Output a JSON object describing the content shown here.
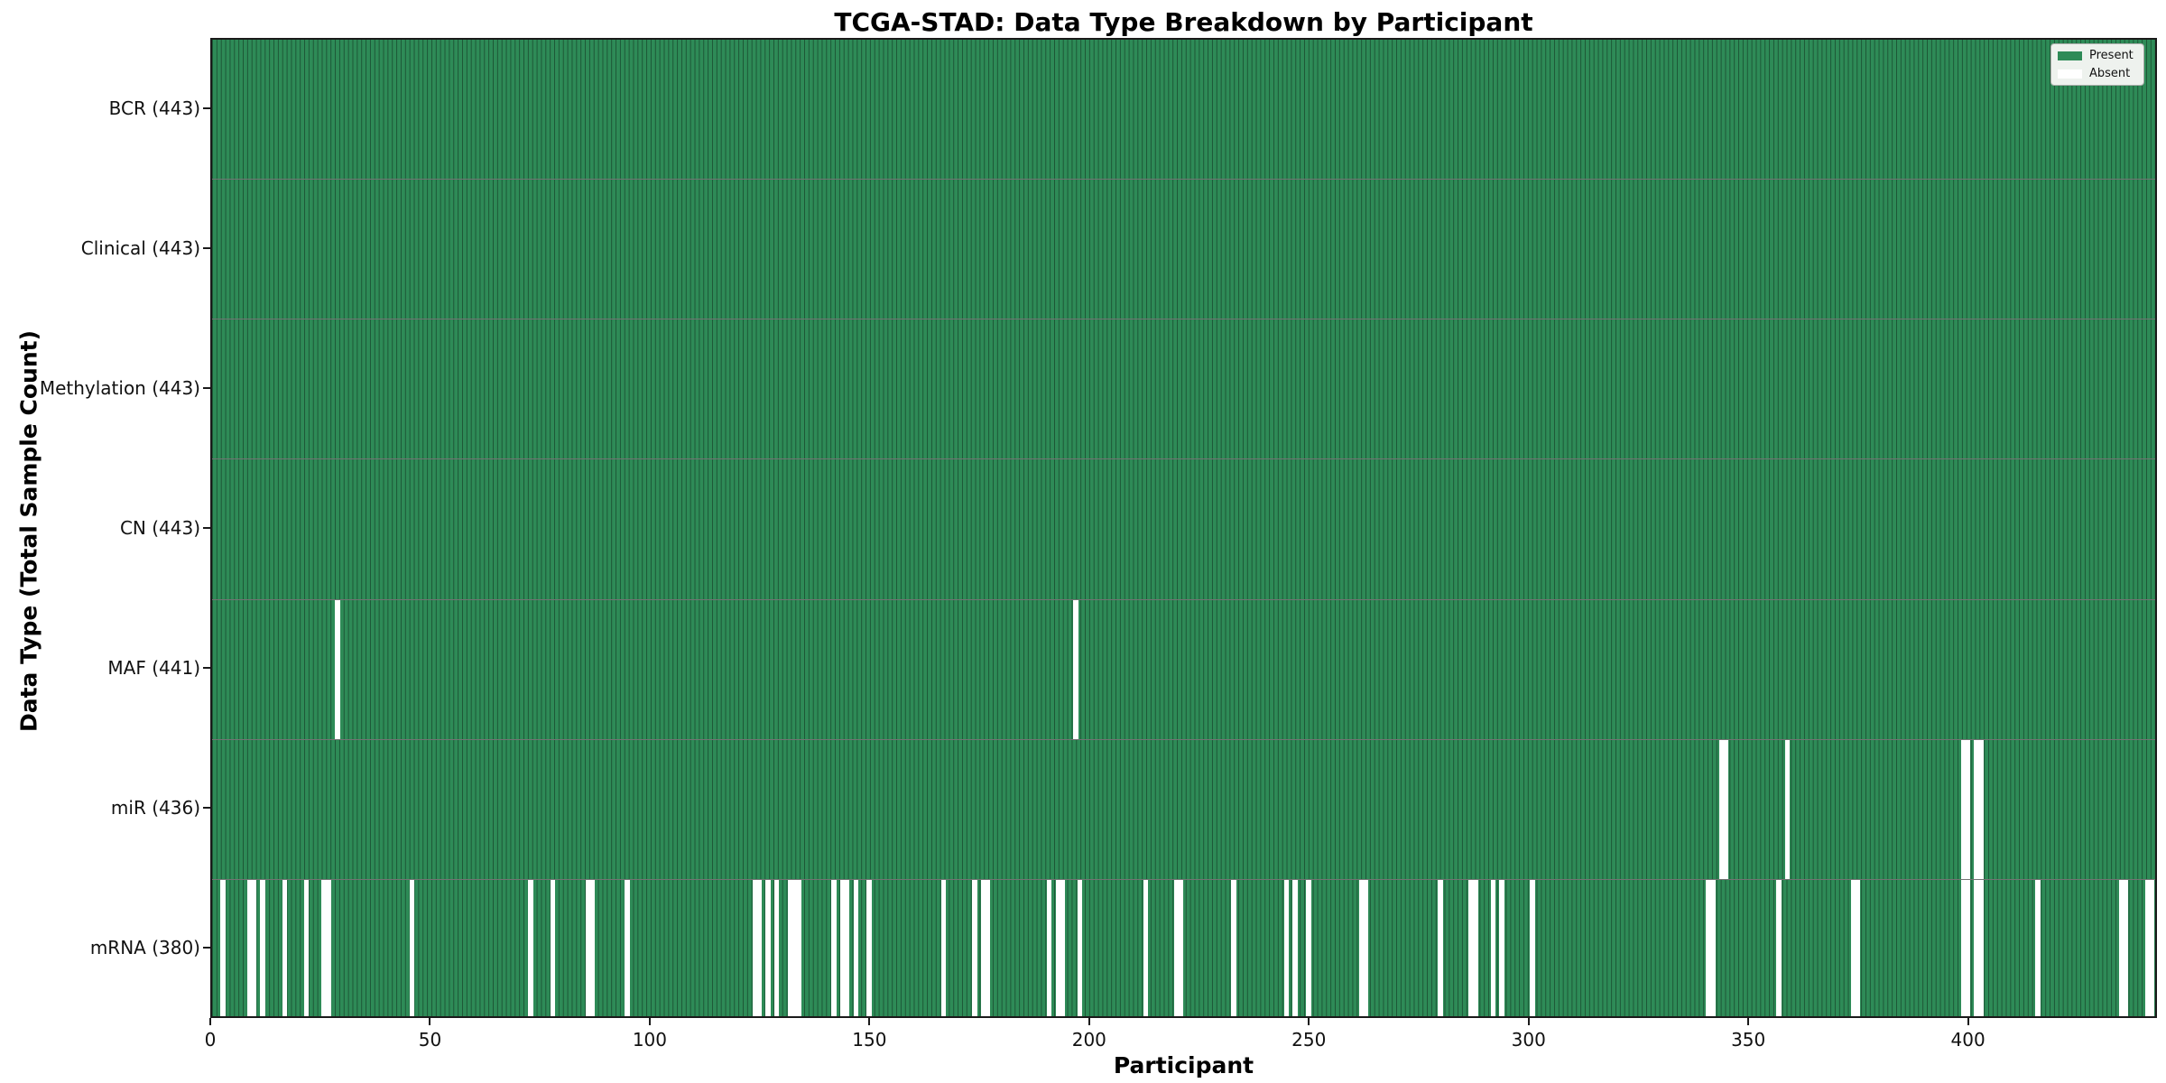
{
  "title": "TCGA-STAD: Data Type Breakdown by Participant",
  "axes": {
    "xlabel": "Participant",
    "ylabel": "Data Type (Total Sample Count)"
  },
  "legend": {
    "present_label": "Present",
    "absent_label": "Absent"
  },
  "colors": {
    "present": "#2e8b57",
    "absent": "#ffffff",
    "cell_edge": "rgba(0,0,0,0.38)",
    "row_separator": "rgba(0,0,0,0.55)",
    "plot_border": "#1a1a1a"
  },
  "chart_data": {
    "type": "heatmap",
    "title": "TCGA-STAD: Data Type Breakdown by Participant",
    "xlabel": "Participant",
    "ylabel": "Data Type (Total Sample Count)",
    "n_participants": 443,
    "x_ticks": [
      0,
      50,
      100,
      150,
      200,
      250,
      300,
      350,
      400
    ],
    "xlim": [
      0,
      443
    ],
    "legend_entries": [
      "Present",
      "Absent"
    ],
    "legend_position": "upper right",
    "grid": "per-cell vertical edges",
    "rows": [
      {
        "label": "BCR (443)",
        "name": "BCR",
        "present_count": 443,
        "absent_participants": []
      },
      {
        "label": "Clinical (443)",
        "name": "Clinical",
        "present_count": 443,
        "absent_participants": []
      },
      {
        "label": "Methylation (443)",
        "name": "Methylation",
        "present_count": 443,
        "absent_participants": []
      },
      {
        "label": "CN (443)",
        "name": "CN",
        "present_count": 443,
        "absent_participants": []
      },
      {
        "label": "MAF (441)",
        "name": "MAF",
        "present_count": 441,
        "absent_participants": [
          28,
          196
        ]
      },
      {
        "label": "miR (436)",
        "name": "miR",
        "present_count": 436,
        "absent_participants": [
          343,
          344,
          358,
          398,
          399,
          401,
          402
        ]
      },
      {
        "label": "mRNA (380)",
        "name": "mRNA",
        "present_count": 380,
        "absent_participants": [
          2,
          8,
          9,
          11,
          16,
          21,
          25,
          26,
          45,
          72,
          77,
          85,
          86,
          94,
          123,
          124,
          126,
          128,
          131,
          132,
          133,
          141,
          143,
          144,
          146,
          149,
          166,
          173,
          175,
          176,
          190,
          192,
          193,
          197,
          212,
          219,
          220,
          232,
          244,
          246,
          249,
          261,
          262,
          279,
          286,
          287,
          291,
          293,
          300,
          340,
          341,
          356,
          373,
          374,
          398,
          399,
          401,
          402,
          415,
          434,
          435,
          440,
          441
        ]
      }
    ]
  }
}
